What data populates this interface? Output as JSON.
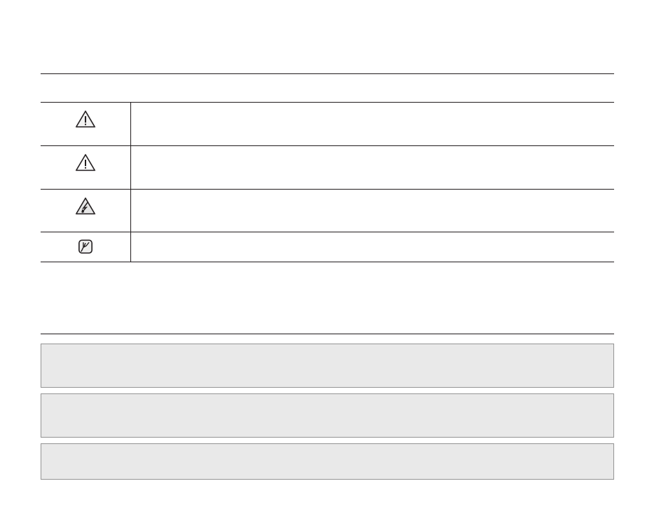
{
  "colors": {
    "rule": "#231f20",
    "box_fill": "#e9e9e9",
    "box_border": "#959595"
  },
  "symbol_table": {
    "rows": [
      {
        "icon": "warning-triangle-icon",
        "text": ""
      },
      {
        "icon": "caution-triangle-icon",
        "text": ""
      },
      {
        "icon": "electric-shock-icon",
        "text": ""
      },
      {
        "icon": "note-icon",
        "text": ""
      }
    ]
  },
  "notice_boxes": [
    {
      "text": ""
    },
    {
      "text": ""
    },
    {
      "text": ""
    }
  ]
}
